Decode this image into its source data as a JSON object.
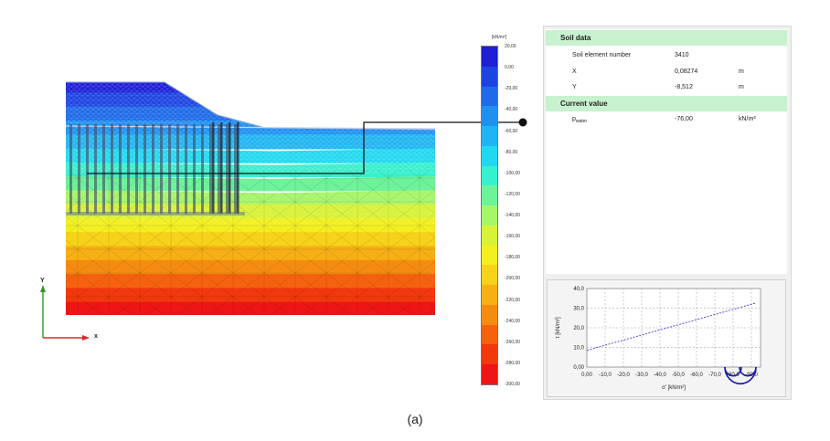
{
  "legend": {
    "unit": "[kN/m²]",
    "ticks": [
      "20,00",
      "0,00",
      "-20,00",
      "-40,00",
      "-60,00",
      "-80,00",
      "-100,00",
      "-120,00",
      "-140,00",
      "-160,00",
      "-180,00",
      "-200,00",
      "-220,00",
      "-240,00",
      "-260,00",
      "-280,00",
      "-300,00"
    ],
    "colors": [
      "#1f1fd6",
      "#1e44e0",
      "#1f6ae8",
      "#2090ef",
      "#20b5f2",
      "#22d8f0",
      "#37f0cd",
      "#6ef29a",
      "#a6f56a",
      "#d8f23a",
      "#f2f020",
      "#f6d21a",
      "#f6b015",
      "#f58c12",
      "#f4620f",
      "#f2380d",
      "#ee1515"
    ]
  },
  "info": {
    "soil_data_heading": "Soil data",
    "current_value_heading": "Current value",
    "rows": [
      {
        "label": "Soil element number",
        "value": "3410",
        "unit": ""
      },
      {
        "label": "X",
        "value": "0,08274",
        "unit": "m"
      },
      {
        "label": "Y",
        "value": "-8,512",
        "unit": "m"
      }
    ],
    "current": {
      "label_main": "p",
      "label_sub": "water",
      "value": "-76,00",
      "unit": "kN/m²"
    }
  },
  "chart_data": {
    "type": "line",
    "xlabel": "σ' [kN/m²]",
    "ylabel": "τ [kN/m²]",
    "x_ticks": [
      "0,00",
      "-10,0",
      "-20,0",
      "-30,0",
      "-40,0",
      "-50,0",
      "-60,0",
      "-70,0",
      "-80,0",
      "-90,0"
    ],
    "y_ticks": [
      "0,00",
      "10,0",
      "20,0",
      "30,0",
      "40,0"
    ],
    "xlim": [
      0,
      -95
    ],
    "ylim": [
      0,
      40
    ],
    "series": [
      {
        "style": "dashed",
        "color": "#3b3bd9",
        "x": [
          0,
          -92
        ],
        "y": [
          8.5,
          32.5
        ]
      }
    ],
    "circles": [
      {
        "center": -84,
        "radius": 8.5
      },
      {
        "center": -80,
        "radius": 4.5
      },
      {
        "center": -88,
        "radius": 4.5
      }
    ]
  },
  "axes": {
    "x": "x",
    "y": "Y"
  },
  "caption": "(a)"
}
